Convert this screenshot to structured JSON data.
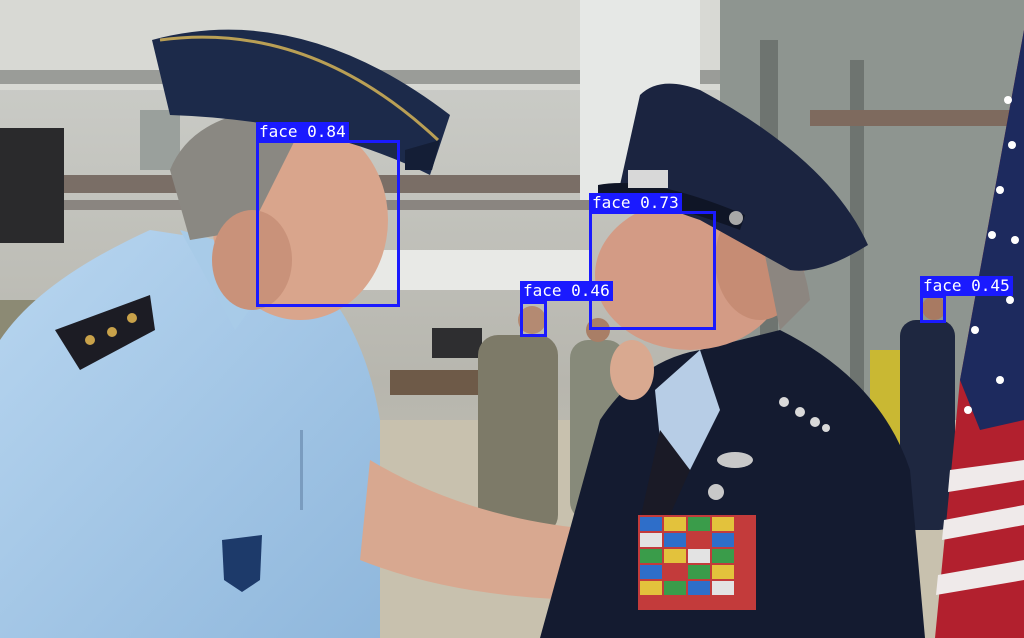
{
  "detections": [
    {
      "label": "face 0.84"
    },
    {
      "label": "face 0.73"
    },
    {
      "label": "face 0.46"
    },
    {
      "label": "face 0.45"
    }
  ],
  "colors": {
    "box": "#1a1aff",
    "label_text": "#ffffff"
  }
}
